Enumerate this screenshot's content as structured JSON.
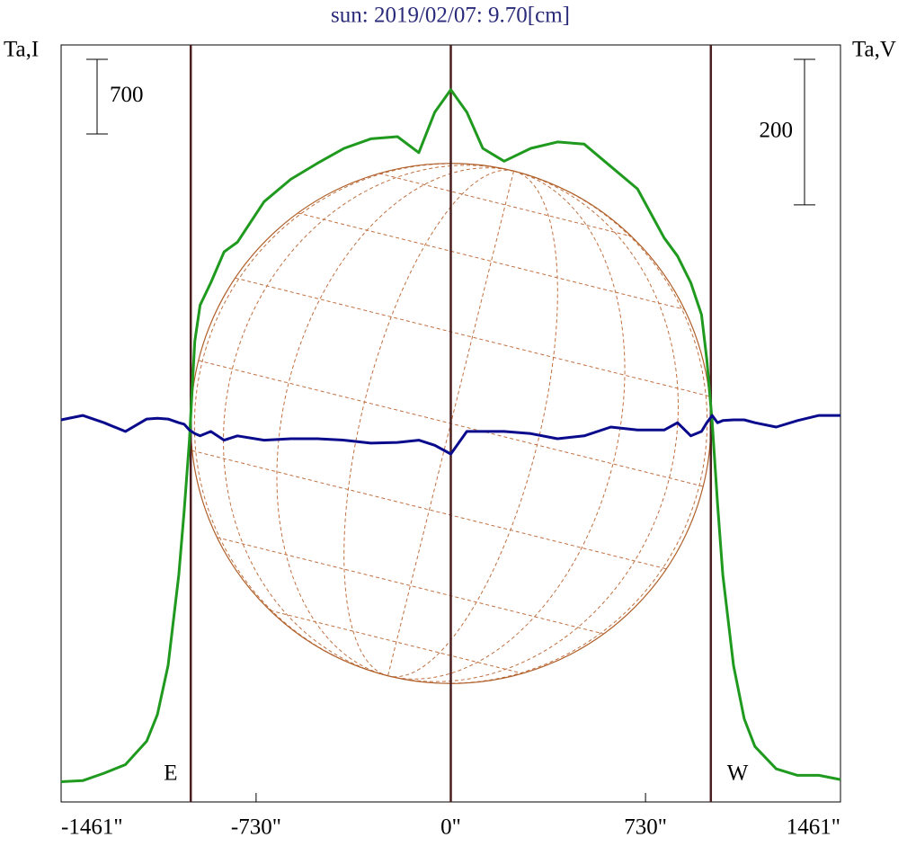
{
  "chart_data": {
    "type": "line",
    "title": "sun: 2019/02/07: 9.70[cm]",
    "y_label": "Ta,I",
    "y2_label": "Ta,V",
    "x": [
      -1461,
      -1380,
      -1300,
      -1220,
      -1140,
      -1100,
      -1060,
      -1020,
      -1000,
      -980,
      -960,
      -940,
      -900,
      -850,
      -800,
      -700,
      -600,
      -500,
      -400,
      -300,
      -200,
      -120,
      -60,
      0,
      60,
      120,
      200,
      300,
      400,
      500,
      600,
      700,
      800,
      850,
      900,
      940,
      960,
      980,
      1000,
      1020,
      1060,
      1100,
      1140,
      1220,
      1300,
      1380,
      1461
    ],
    "series": [
      {
        "name": "I",
        "color": "#1f9a1f",
        "values": [
          190,
          200,
          270,
          350,
          570,
          820,
          1280,
          2130,
          2720,
          3390,
          4320,
          4660,
          4870,
          5160,
          5250,
          5630,
          5840,
          5990,
          6130,
          6220,
          6240,
          6090,
          6470,
          6680,
          6470,
          6130,
          6010,
          6130,
          6190,
          6170,
          5960,
          5750,
          5290,
          5120,
          4870,
          4570,
          4150,
          3560,
          2800,
          2130,
          1280,
          780,
          520,
          310,
          250,
          250,
          210
        ]
      },
      {
        "name": "V",
        "color": "#0a0a8c",
        "axis": "y2",
        "values": [
          5,
          11,
          1,
          -11,
          6,
          7,
          6,
          1,
          -1,
          -9,
          -14,
          -17,
          -11,
          -23,
          -17,
          -23,
          -21,
          -21,
          -23,
          -27,
          -26,
          -23,
          -30,
          -42,
          -11,
          -11,
          -11,
          -14,
          -21,
          -17,
          -5,
          -9,
          -9,
          1,
          -17,
          -11,
          1,
          11,
          1,
          4,
          5,
          5,
          1,
          -5,
          4,
          11,
          11
        ]
      }
    ],
    "xlim": [
      -1461,
      1461
    ],
    "xticks": [
      {
        "value": -1461,
        "label": "-1461\""
      },
      {
        "value": -730,
        "label": "-730\""
      },
      {
        "value": 0,
        "label": "0\""
      },
      {
        "value": 730,
        "label": "730\""
      },
      {
        "value": 1461,
        "label": "1461\""
      }
    ],
    "ylim": [
      0,
      7100
    ],
    "y2lim": [
      -520,
      520
    ],
    "scale_bar_y": 700,
    "scale_bar_y2": 200,
    "vlines": [
      -975,
      0,
      975
    ],
    "limb_labels": [
      "E",
      "W"
    ]
  }
}
